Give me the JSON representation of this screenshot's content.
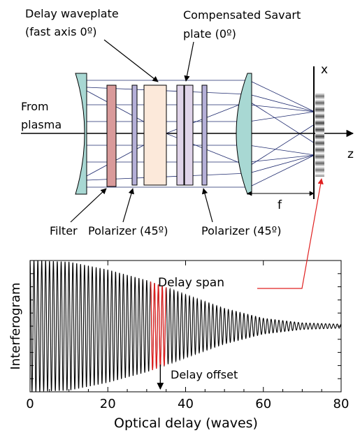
{
  "colors": {
    "lens": "#a8d8d3",
    "filter": "#d99a9a",
    "polarizer": "#b5b0d8",
    "waveplate": "#fce9da",
    "savart": "#e0d4ea",
    "ray": "#1e2a6e",
    "highlight": "#e02020",
    "ink": "#000000"
  },
  "labels": {
    "delay_waveplate_1": "Delay waveplate",
    "delay_waveplate_2": "(fast axis 0º)",
    "savart_1": "Compensated Savart",
    "savart_2": "plate (0º)",
    "from_plasma_1": "From",
    "from_plasma_2": "plasma",
    "axis_x": "x",
    "axis_z": "z",
    "focal": "f",
    "filter": "Filter",
    "polarizer_1": "Polarizer (45º)",
    "polarizer_2": "Polarizer (45º)"
  },
  "chart_data": {
    "type": "line",
    "ylabel": "Interferogram",
    "xlabel": "Optical delay (waves)",
    "xlim": [
      0,
      80
    ],
    "ylim": [
      -1,
      1
    ],
    "xticks": [
      0,
      20,
      40,
      60,
      80
    ],
    "xtick_labels": [
      "0",
      "20",
      "40",
      "60",
      "80"
    ],
    "series": [
      {
        "fringe_period_waves": 1,
        "envelope": [
          [
            0,
            1.0
          ],
          [
            10,
            0.98
          ],
          [
            20,
            0.86
          ],
          [
            30,
            0.7
          ],
          [
            40,
            0.48
          ],
          [
            50,
            0.27
          ],
          [
            60,
            0.12
          ],
          [
            70,
            0.05
          ],
          [
            80,
            0.03
          ]
        ]
      }
    ],
    "highlight": {
      "x_range": [
        31,
        35
      ],
      "color": "#e02020"
    },
    "annotations": {
      "delay_span": "Delay span",
      "delay_offset": "Delay offset",
      "delay_offset_x": 33.5
    }
  }
}
